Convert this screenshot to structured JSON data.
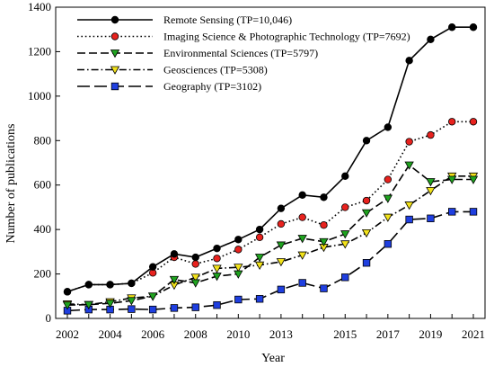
{
  "chart_data": {
    "type": "line",
    "xlabel": "Year",
    "ylabel": "Number of publications",
    "xlim": [
      2002,
      2021
    ],
    "ylim": [
      0,
      1400
    ],
    "x_ticks": [
      "2002",
      "2004",
      "2006",
      "2008",
      "2010",
      "2013",
      "2015",
      "2017",
      "2019",
      "2021"
    ],
    "y_ticks": [
      "0",
      "200",
      "400",
      "600",
      "800",
      "1000",
      "1200",
      "1400"
    ],
    "grid": false,
    "legend_position": "top-left",
    "x": [
      2002,
      2003,
      2004,
      2005,
      2006,
      2007,
      2008,
      2009,
      2010,
      2011,
      2012,
      2013,
      2014,
      2015,
      2016,
      2017,
      2018,
      2019,
      2020,
      2021
    ],
    "series": [
      {
        "name": "Remote Sensing (TP=10,046)",
        "marker": "circle",
        "marker_color": "#000000",
        "line_style": "solid",
        "values": [
          120,
          152,
          152,
          158,
          232,
          290,
          275,
          315,
          355,
          400,
          495,
          555,
          545,
          640,
          800,
          860,
          1160,
          1255,
          1310,
          1310
        ]
      },
      {
        "name": "Imaging Science & Photographic Technology (TP=7692)",
        "marker": "circle",
        "marker_color": "#e8221e",
        "line_style": "dotted",
        "values": [
          120,
          152,
          152,
          158,
          205,
          275,
          245,
          270,
          310,
          365,
          425,
          455,
          420,
          500,
          530,
          625,
          795,
          825,
          885,
          885
        ]
      },
      {
        "name": "Environmental Sciences (TP=5797)",
        "marker": "triangle-down",
        "marker_color": "#1fa31f",
        "line_style": "dashed",
        "values": [
          60,
          62,
          68,
          80,
          100,
          175,
          160,
          190,
          200,
          275,
          330,
          360,
          345,
          380,
          475,
          540,
          690,
          615,
          625,
          625
        ]
      },
      {
        "name": "Geosciences (TP=5308)",
        "marker": "triangle-down",
        "marker_color": "#f2e21a",
        "line_style": "dashdot",
        "values": [
          65,
          62,
          75,
          92,
          100,
          150,
          185,
          225,
          230,
          240,
          255,
          285,
          320,
          335,
          385,
          455,
          510,
          575,
          640,
          640
        ]
      },
      {
        "name": "Geography (TP=3102)",
        "marker": "square",
        "marker_color": "#1f3fe0",
        "line_style": "longdash",
        "values": [
          35,
          40,
          40,
          42,
          40,
          47,
          50,
          60,
          85,
          88,
          130,
          160,
          135,
          185,
          250,
          335,
          445,
          450,
          480,
          480
        ]
      }
    ]
  }
}
